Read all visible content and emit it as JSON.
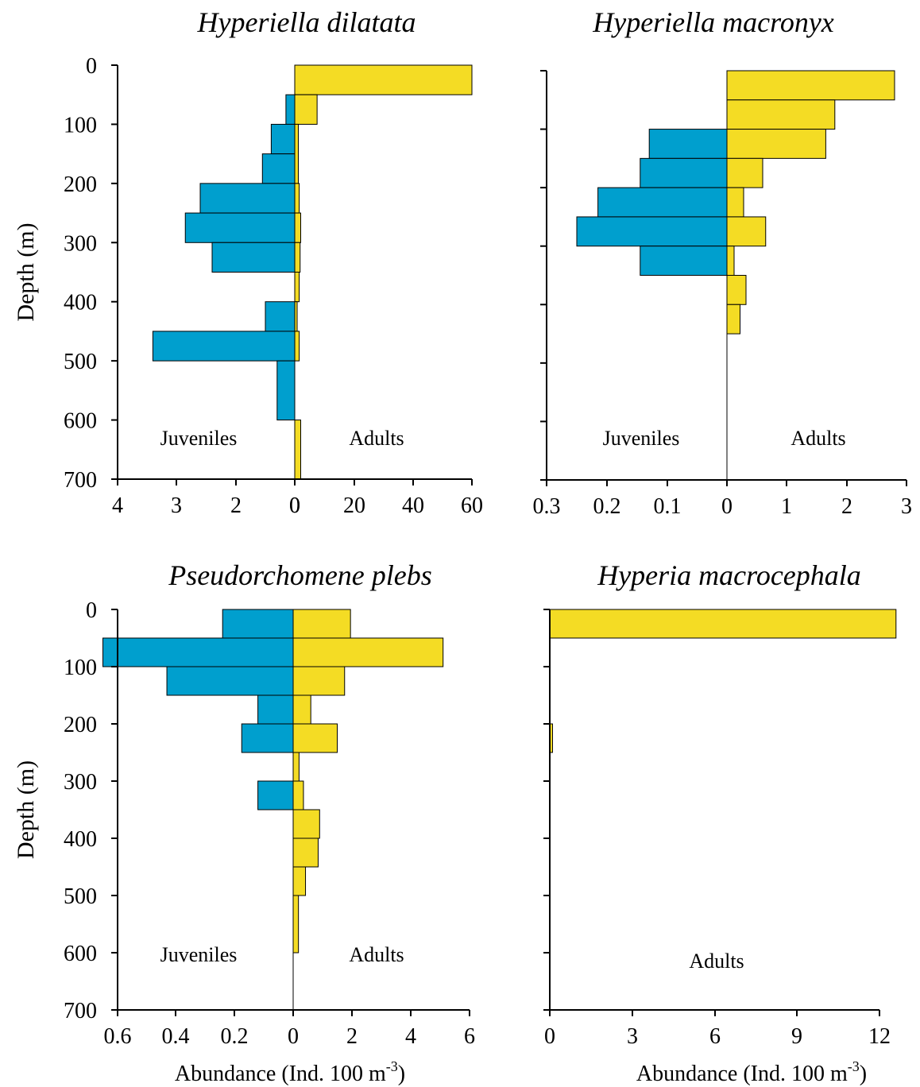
{
  "colors": {
    "juveniles": "#009fce",
    "adults": "#f4dc24"
  },
  "chart_data": [
    {
      "type": "bar",
      "orientation": "horizontal",
      "title": "Hyperiella dilatata",
      "ylabel": "Depth (m)",
      "xlabel": "",
      "ylim": [
        0,
        700
      ],
      "y_ticks": [
        "0",
        "100",
        "200",
        "300",
        "400",
        "500",
        "600",
        "700"
      ],
      "x_ticks_left": [
        "4",
        "3",
        "2",
        "0"
      ],
      "x_ticks_right": [
        "0",
        "20",
        "40",
        "60"
      ],
      "left_label": "Juveniles",
      "right_label": "Adults",
      "left_xlim": [
        0,
        3
      ],
      "right_xlim": [
        0,
        60
      ],
      "series": [
        {
          "name": "Juveniles",
          "side": "left",
          "bins": [
            {
              "depth_from": 50,
              "depth_to": 100,
              "value": 0.15
            },
            {
              "depth_from": 100,
              "depth_to": 150,
              "value": 0.4
            },
            {
              "depth_from": 150,
              "depth_to": 200,
              "value": 0.55
            },
            {
              "depth_from": 200,
              "depth_to": 250,
              "value": 1.6
            },
            {
              "depth_from": 250,
              "depth_to": 300,
              "value": 1.85
            },
            {
              "depth_from": 300,
              "depth_to": 350,
              "value": 1.4
            },
            {
              "depth_from": 350,
              "depth_to": 400,
              "value": 0
            },
            {
              "depth_from": 400,
              "depth_to": 450,
              "value": 0.5
            },
            {
              "depth_from": 450,
              "depth_to": 500,
              "value": 2.4
            },
            {
              "depth_from": 500,
              "depth_to": 600,
              "value": 0.3
            }
          ]
        },
        {
          "name": "Adults",
          "side": "right",
          "bins": [
            {
              "depth_from": 0,
              "depth_to": 50,
              "value": 60
            },
            {
              "depth_from": 50,
              "depth_to": 100,
              "value": 7.5
            },
            {
              "depth_from": 100,
              "depth_to": 200,
              "value": 1.2
            },
            {
              "depth_from": 200,
              "depth_to": 250,
              "value": 1.5
            },
            {
              "depth_from": 250,
              "depth_to": 300,
              "value": 2
            },
            {
              "depth_from": 300,
              "depth_to": 350,
              "value": 1.8
            },
            {
              "depth_from": 350,
              "depth_to": 400,
              "value": 1.5
            },
            {
              "depth_from": 400,
              "depth_to": 450,
              "value": 0.8
            },
            {
              "depth_from": 450,
              "depth_to": 500,
              "value": 1.5
            },
            {
              "depth_from": 500,
              "depth_to": 600,
              "value": 0
            },
            {
              "depth_from": 600,
              "depth_to": 700,
              "value": 2
            }
          ]
        }
      ]
    },
    {
      "type": "bar",
      "orientation": "horizontal",
      "title": "Hyperiella macronyx",
      "ylabel": "",
      "xlabel": "",
      "ylim": [
        0,
        700
      ],
      "y_ticks": [],
      "x_ticks_left": [
        "0.3",
        "0.2",
        "0.1",
        "0"
      ],
      "x_ticks_right": [
        "1",
        "2",
        "3"
      ],
      "left_label": "Juveniles",
      "right_label": "Adults",
      "left_xlim": [
        0,
        0.3
      ],
      "right_xlim": [
        0,
        3
      ],
      "series": [
        {
          "name": "Juveniles",
          "side": "left",
          "bins": [
            {
              "depth_from": 100,
              "depth_to": 150,
              "value": 0.13
            },
            {
              "depth_from": 150,
              "depth_to": 200,
              "value": 0.145
            },
            {
              "depth_from": 200,
              "depth_to": 250,
              "value": 0.215
            },
            {
              "depth_from": 250,
              "depth_to": 300,
              "value": 0.25
            },
            {
              "depth_from": 300,
              "depth_to": 350,
              "value": 0.145
            }
          ]
        },
        {
          "name": "Adults",
          "side": "right",
          "bins": [
            {
              "depth_from": 0,
              "depth_to": 50,
              "value": 2.8
            },
            {
              "depth_from": 50,
              "depth_to": 100,
              "value": 1.8
            },
            {
              "depth_from": 100,
              "depth_to": 150,
              "value": 1.65
            },
            {
              "depth_from": 150,
              "depth_to": 200,
              "value": 0.6
            },
            {
              "depth_from": 200,
              "depth_to": 250,
              "value": 0.28
            },
            {
              "depth_from": 250,
              "depth_to": 300,
              "value": 0.65
            },
            {
              "depth_from": 300,
              "depth_to": 350,
              "value": 0.12
            },
            {
              "depth_from": 350,
              "depth_to": 400,
              "value": 0.32
            },
            {
              "depth_from": 400,
              "depth_to": 450,
              "value": 0.22
            }
          ]
        }
      ]
    },
    {
      "type": "bar",
      "orientation": "horizontal",
      "title": "Pseudorchomene plebs",
      "ylabel": "Depth (m)",
      "xlabel": "Abundance (Ind. 100 m",
      "xlabel_sup": "-3",
      "xlabel_end": ")",
      "ylim": [
        0,
        700
      ],
      "y_ticks": [
        "0",
        "100",
        "200",
        "300",
        "400",
        "500",
        "600",
        "700"
      ],
      "x_ticks_left": [
        "0.6",
        "0.4",
        "0.2",
        "0"
      ],
      "x_ticks_right": [
        "2",
        "4",
        "6"
      ],
      "left_label": "Juveniles",
      "right_label": "Adults",
      "left_xlim": [
        0,
        0.7
      ],
      "right_xlim": [
        0,
        6
      ],
      "series": [
        {
          "name": "Juveniles",
          "side": "left",
          "bins": [
            {
              "depth_from": 0,
              "depth_to": 50,
              "value": 0.24
            },
            {
              "depth_from": 50,
              "depth_to": 100,
              "value": 0.65
            },
            {
              "depth_from": 100,
              "depth_to": 150,
              "value": 0.43
            },
            {
              "depth_from": 150,
              "depth_to": 200,
              "value": 0.12
            },
            {
              "depth_from": 200,
              "depth_to": 250,
              "value": 0.175
            },
            {
              "depth_from": 300,
              "depth_to": 350,
              "value": 0.12
            }
          ]
        },
        {
          "name": "Adults",
          "side": "right",
          "bins": [
            {
              "depth_from": 0,
              "depth_to": 50,
              "value": 1.95
            },
            {
              "depth_from": 50,
              "depth_to": 100,
              "value": 5.1
            },
            {
              "depth_from": 100,
              "depth_to": 150,
              "value": 1.75
            },
            {
              "depth_from": 150,
              "depth_to": 200,
              "value": 0.6
            },
            {
              "depth_from": 200,
              "depth_to": 250,
              "value": 1.5
            },
            {
              "depth_from": 250,
              "depth_to": 300,
              "value": 0.2
            },
            {
              "depth_from": 300,
              "depth_to": 350,
              "value": 0.35
            },
            {
              "depth_from": 350,
              "depth_to": 400,
              "value": 0.9
            },
            {
              "depth_from": 400,
              "depth_to": 450,
              "value": 0.85
            },
            {
              "depth_from": 450,
              "depth_to": 500,
              "value": 0.42
            },
            {
              "depth_from": 500,
              "depth_to": 600,
              "value": 0.18
            }
          ]
        }
      ]
    },
    {
      "type": "bar",
      "orientation": "horizontal",
      "title": "Hyperia macrocephala",
      "ylabel": "",
      "xlabel": "Abundance (Ind. 100 m",
      "xlabel_sup": "-3",
      "xlabel_end": ")",
      "ylim": [
        0,
        700
      ],
      "y_ticks": [],
      "x_ticks_left": [],
      "x_ticks_right": [
        "0",
        "3",
        "6",
        "9",
        "12"
      ],
      "left_label": "",
      "right_label": "Adults",
      "left_xlim": [
        0,
        0
      ],
      "right_xlim": [
        0,
        12
      ],
      "series": [
        {
          "name": "Adults",
          "side": "right",
          "bins": [
            {
              "depth_from": 0,
              "depth_to": 50,
              "value": 12.6
            },
            {
              "depth_from": 200,
              "depth_to": 250,
              "value": 0.1
            }
          ]
        }
      ]
    }
  ]
}
